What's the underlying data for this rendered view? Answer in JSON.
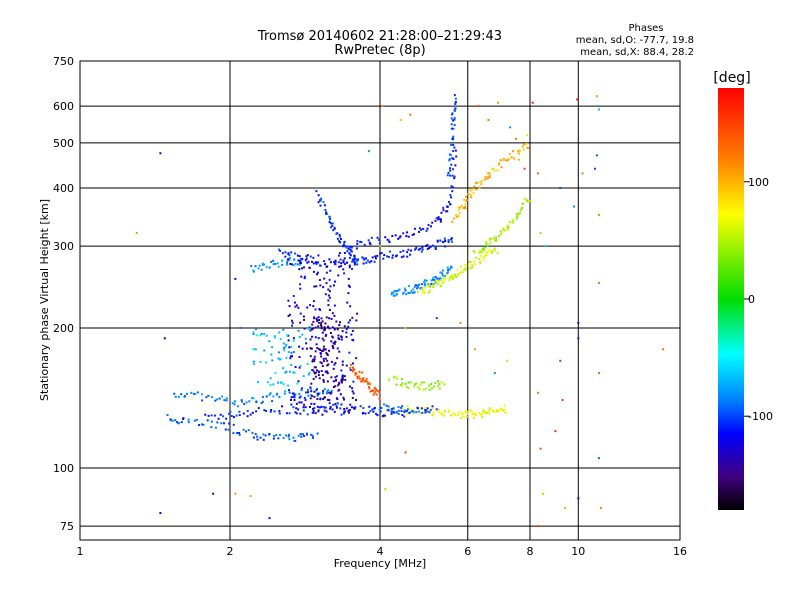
{
  "chart_data": {
    "type": "scatter",
    "title": "Tromsø 20140602 21:28:00–21:29:43",
    "subtitle": "RwPretec (8p)",
    "xlabel": "Frequency [MHz]",
    "ylabel": "Stationary phase Virtual Height [km]",
    "x_scale": "log",
    "y_scale": "log",
    "xlim": [
      1,
      16
    ],
    "ylim": [
      70,
      750
    ],
    "x_ticks": [
      1,
      2,
      4,
      6,
      8,
      10,
      16
    ],
    "y_ticks": [
      75,
      100,
      200,
      300,
      400,
      500,
      600,
      750
    ],
    "grid": true,
    "colorbar": {
      "label": "[deg]",
      "range": [
        -180,
        180
      ],
      "ticks": [
        100,
        0,
        -100
      ]
    },
    "phases": {
      "heading": "Phases",
      "o_line": "mean, sd,O: -77.7, 19.8",
      "x_line": "mean, sd,X:  88.4, 28.2"
    },
    "traces": [
      {
        "x": [
          1.8,
          2.0,
          2.2,
          2.5,
          2.8,
          3.0,
          3.2,
          3.5,
          3.8,
          4.0,
          4.3,
          4.6
        ],
        "y": [
          128,
          130,
          132,
          133,
          133,
          133,
          134,
          134,
          133,
          132,
          131,
          130
        ],
        "phase": -110
      },
      {
        "x": [
          1.5,
          1.6,
          1.8,
          2.0,
          2.2,
          2.4,
          2.6,
          2.8,
          3.0
        ],
        "y": [
          128,
          127,
          125,
          122,
          118,
          116,
          116,
          117,
          118
        ],
        "phase": -95
      },
      {
        "x": [
          1.55,
          1.7,
          1.9,
          2.1,
          2.3,
          2.5,
          2.8,
          3.0,
          3.2
        ],
        "y": [
          145,
          143,
          140,
          138,
          140,
          143,
          145,
          146,
          147
        ],
        "phase": -85
      },
      {
        "x": [
          2.5,
          2.7,
          2.9,
          3.1,
          3.3,
          3.5,
          3.7,
          3.9,
          4.2,
          4.5,
          4.8,
          5.1,
          5.4,
          5.6
        ],
        "y": [
          290,
          285,
          280,
          276,
          275,
          277,
          280,
          283,
          287,
          290,
          295,
          300,
          305,
          308
        ],
        "phase": -110
      },
      {
        "x": [
          3.0,
          3.1,
          3.2,
          3.3,
          3.4,
          3.5,
          3.6
        ],
        "y": [
          390,
          360,
          335,
          315,
          298,
          288,
          280
        ],
        "phase": -105
      },
      {
        "x": [
          2.2,
          2.35,
          2.5,
          2.65,
          2.8
        ],
        "y": [
          268,
          272,
          276,
          278,
          278
        ],
        "phase": -80
      },
      {
        "x": [
          3.5,
          3.8,
          4.2,
          4.6,
          5.0,
          5.3,
          5.5,
          5.6,
          5.7
        ],
        "y": [
          300,
          305,
          312,
          320,
          330,
          345,
          370,
          420,
          500
        ],
        "phase": -115
      },
      {
        "x": [
          5.5,
          5.55,
          5.6,
          5.62,
          5.64
        ],
        "y": [
          420,
          470,
          530,
          580,
          630
        ],
        "phase": -100
      },
      {
        "x": [
          4.2,
          4.4,
          4.6,
          4.8,
          5.0,
          5.2,
          5.4,
          5.6
        ],
        "y": [
          238,
          240,
          242,
          245,
          250,
          255,
          262,
          270
        ],
        "phase": -85
      },
      {
        "x": [
          4.8,
          5.0,
          5.2,
          5.4,
          5.6,
          5.8,
          6.0,
          6.3,
          6.6,
          6.9
        ],
        "y": [
          238,
          242,
          248,
          254,
          260,
          266,
          272,
          280,
          288,
          295
        ],
        "phase": 60
      },
      {
        "x": [
          6.2,
          6.5,
          6.8,
          7.1,
          7.4,
          7.7,
          8.0
        ],
        "y": [
          290,
          300,
          312,
          325,
          340,
          360,
          385
        ],
        "phase": 45
      },
      {
        "x": [
          4.5,
          4.8,
          5.1,
          5.4,
          5.7,
          6.0,
          6.3,
          6.6,
          6.9,
          7.2
        ],
        "y": [
          133,
          133,
          132,
          131,
          130,
          130,
          131,
          132,
          133,
          134
        ],
        "phase": 70
      },
      {
        "x": [
          3.5,
          3.6,
          3.7,
          3.8,
          3.9,
          4.0
        ],
        "y": [
          165,
          160,
          155,
          150,
          146,
          143
        ],
        "phase": 140
      },
      {
        "x": [
          4.2,
          4.5,
          4.8,
          5.1,
          5.4
        ],
        "y": [
          155,
          152,
          150,
          150,
          152
        ],
        "phase": 40
      },
      {
        "x": [
          5.6,
          5.8,
          6.0,
          6.2,
          6.5,
          6.8,
          7.2,
          7.6,
          8.0
        ],
        "y": [
          340,
          360,
          380,
          400,
          420,
          440,
          460,
          480,
          500
        ],
        "phase": 100
      },
      {
        "x": [
          4.0,
          4.3,
          4.6,
          4.9,
          5.2
        ],
        "y": [
          135,
          134,
          133,
          133,
          134
        ],
        "phase": -95
      }
    ],
    "clusters": [
      {
        "x": [
          2.6,
          3.6
        ],
        "y": [
          130,
          290
        ],
        "phase": -125,
        "count": 240
      },
      {
        "x": [
          2.9,
          3.4
        ],
        "y": [
          140,
          210
        ],
        "phase": -145,
        "count": 120
      },
      {
        "x": [
          2.2,
          2.9
        ],
        "y": [
          150,
          200
        ],
        "phase": -70,
        "count": 70
      }
    ],
    "scatter_points": [
      {
        "x": 1.45,
        "y": 475,
        "phase": -120
      },
      {
        "x": 1.48,
        "y": 190,
        "phase": -120
      },
      {
        "x": 1.3,
        "y": 320,
        "phase": 110
      },
      {
        "x": 1.45,
        "y": 80,
        "phase": -130
      },
      {
        "x": 1.85,
        "y": 88,
        "phase": -150
      },
      {
        "x": 2.05,
        "y": 88,
        "phase": 110
      },
      {
        "x": 2.2,
        "y": 87,
        "phase": 110
      },
      {
        "x": 2.4,
        "y": 78,
        "phase": -120
      },
      {
        "x": 2.05,
        "y": 255,
        "phase": -110
      },
      {
        "x": 2.1,
        "y": 200,
        "phase": -90
      },
      {
        "x": 4.4,
        "y": 560,
        "phase": 100
      },
      {
        "x": 4.6,
        "y": 575,
        "phase": 130
      },
      {
        "x": 3.8,
        "y": 480,
        "phase": -80
      },
      {
        "x": 4.05,
        "y": 600,
        "phase": 120
      },
      {
        "x": 4.0,
        "y": 300,
        "phase": 30
      },
      {
        "x": 4.1,
        "y": 90,
        "phase": 100
      },
      {
        "x": 4.5,
        "y": 108,
        "phase": 150
      },
      {
        "x": 4.5,
        "y": 200,
        "phase": 40
      },
      {
        "x": 5.8,
        "y": 205,
        "phase": 120
      },
      {
        "x": 6.3,
        "y": 600,
        "phase": 150
      },
      {
        "x": 6.6,
        "y": 560,
        "phase": 120
      },
      {
        "x": 6.9,
        "y": 610,
        "phase": 110
      },
      {
        "x": 7.3,
        "y": 540,
        "phase": -80
      },
      {
        "x": 7.5,
        "y": 510,
        "phase": 130
      },
      {
        "x": 7.6,
        "y": 460,
        "phase": 100
      },
      {
        "x": 7.8,
        "y": 440,
        "phase": 150
      },
      {
        "x": 7.9,
        "y": 520,
        "phase": 60
      },
      {
        "x": 8.1,
        "y": 610,
        "phase": 170
      },
      {
        "x": 8.3,
        "y": 430,
        "phase": 130
      },
      {
        "x": 8.4,
        "y": 320,
        "phase": 40
      },
      {
        "x": 8.3,
        "y": 145,
        "phase": 120
      },
      {
        "x": 8.4,
        "y": 110,
        "phase": 140
      },
      {
        "x": 8.5,
        "y": 88,
        "phase": 100
      },
      {
        "x": 8.3,
        "y": 75,
        "phase": 150
      },
      {
        "x": 9.0,
        "y": 120,
        "phase": 160
      },
      {
        "x": 9.2,
        "y": 170,
        "phase": -90
      },
      {
        "x": 9.3,
        "y": 140,
        "phase": 160
      },
      {
        "x": 9.4,
        "y": 82,
        "phase": 100
      },
      {
        "x": 9.8,
        "y": 365,
        "phase": -80
      },
      {
        "x": 10.0,
        "y": 190,
        "phase": -110
      },
      {
        "x": 10.0,
        "y": 205,
        "phase": -130
      },
      {
        "x": 9.95,
        "y": 620,
        "phase": 170
      },
      {
        "x": 10.0,
        "y": 86,
        "phase": -120
      },
      {
        "x": 10.2,
        "y": 430,
        "phase": 120
      },
      {
        "x": 10.9,
        "y": 470,
        "phase": -90
      },
      {
        "x": 10.8,
        "y": 440,
        "phase": -100
      },
      {
        "x": 10.9,
        "y": 630,
        "phase": 110
      },
      {
        "x": 11.0,
        "y": 590,
        "phase": -70
      },
      {
        "x": 11.0,
        "y": 350,
        "phase": 120
      },
      {
        "x": 11.0,
        "y": 250,
        "phase": 130
      },
      {
        "x": 11.0,
        "y": 105,
        "phase": -90
      },
      {
        "x": 11.1,
        "y": 82,
        "phase": 120
      },
      {
        "x": 11.0,
        "y": 160,
        "phase": 130
      },
      {
        "x": 14.8,
        "y": 180,
        "phase": 130
      },
      {
        "x": 9.2,
        "y": 400,
        "phase": -100
      },
      {
        "x": 8.6,
        "y": 300,
        "phase": -60
      },
      {
        "x": 7.2,
        "y": 170,
        "phase": 50
      },
      {
        "x": 6.8,
        "y": 160,
        "phase": -80
      },
      {
        "x": 6.2,
        "y": 180,
        "phase": 110
      },
      {
        "x": 5.2,
        "y": 210,
        "phase": -100
      }
    ]
  }
}
